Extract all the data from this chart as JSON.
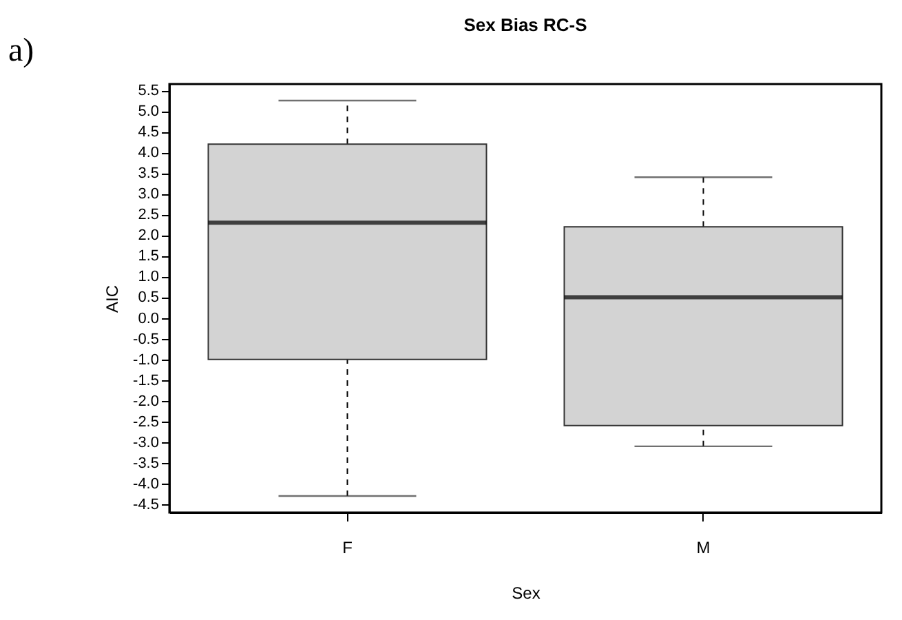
{
  "chart_data": {
    "type": "box",
    "title": "Sex Bias RC-S",
    "xlabel": "Sex",
    "ylabel": "AIC",
    "annotations": [
      "a)"
    ],
    "categories": [
      "F",
      "M"
    ],
    "series": [
      {
        "color": "#d3d3d3",
        "boxes": [
          {
            "low": -4.3,
            "q1": -1.0,
            "median": 2.3,
            "q3": 4.2,
            "high": 5.25
          },
          {
            "low": -3.1,
            "q1": -2.6,
            "median": 0.5,
            "q3": 2.2,
            "high": 3.4
          }
        ]
      }
    ],
    "ylim": [
      -4.7,
      5.65
    ],
    "yticks": [
      {
        "value": -4.5,
        "label": "-4.5"
      },
      {
        "value": -4,
        "label": "-4.0"
      },
      {
        "value": -3.5,
        "label": "-3.5"
      },
      {
        "value": -3,
        "label": "-3.0"
      },
      {
        "value": -2.5,
        "label": "-2.5"
      },
      {
        "value": -2,
        "label": "-2.0"
      },
      {
        "value": -1.5,
        "label": "-1.5"
      },
      {
        "value": -1,
        "label": "-1.0"
      },
      {
        "value": -0.5,
        "label": "-0.5"
      },
      {
        "value": 0,
        "label": "0.0"
      },
      {
        "value": 0.5,
        "label": "0.5"
      },
      {
        "value": 1,
        "label": "1.0"
      },
      {
        "value": 1.5,
        "label": "1.5"
      },
      {
        "value": 2,
        "label": "2.0"
      },
      {
        "value": 2.5,
        "label": "2.5"
      },
      {
        "value": 3,
        "label": "3.0"
      },
      {
        "value": 3.5,
        "label": "3.5"
      },
      {
        "value": 4,
        "label": "4.0"
      },
      {
        "value": 4.5,
        "label": "4.5"
      },
      {
        "value": 5,
        "label": "5.0"
      },
      {
        "value": 5.5,
        "label": "5.5"
      }
    ]
  }
}
